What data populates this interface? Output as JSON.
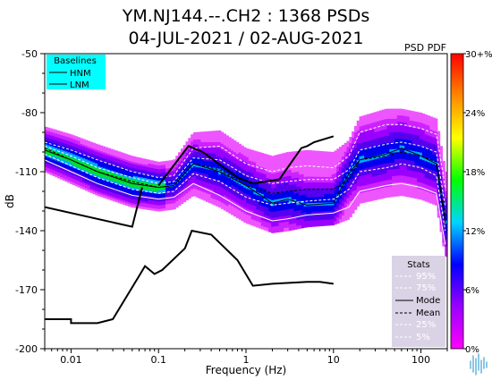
{
  "chart_data": {
    "type": "heatmap",
    "title": "YM.NJ144.--.CH2 : 1368 PSDs",
    "subtitle": "04-JUL-2021 / 02-AUG-2021",
    "xlabel": "Frequency (Hz)",
    "ylabel": "dB",
    "xscale": "log",
    "xlim": [
      0.005,
      200
    ],
    "ylim": [
      -200,
      -50
    ],
    "x_ticks": [
      "0.01",
      "0.1",
      "1",
      "10",
      "100"
    ],
    "x_tick_values": [
      0.01,
      0.1,
      1,
      10,
      100
    ],
    "y_ticks": [
      "-50",
      "-80",
      "-110",
      "-140",
      "-170",
      "-200"
    ],
    "y_tick_values": [
      -50,
      -80,
      -110,
      -140,
      -170,
      -200
    ],
    "colorbar": {
      "label": "PSD PDF",
      "ticks": [
        "30+%",
        "24%",
        "18%",
        "12%",
        "6%",
        "0%"
      ],
      "tick_values": [
        30,
        24,
        18,
        12,
        6,
        0
      ],
      "range": [
        0,
        30
      ],
      "colors": [
        "#ff00ff",
        "#9900ff",
        "#0000ff",
        "#00d5ff",
        "#00ff00",
        "#ffff00",
        "#ff8800",
        "#ff0000"
      ]
    },
    "baselines": {
      "title": "Baselines",
      "entries": [
        "HNM",
        "LNM"
      ],
      "box_color": "#00ffff",
      "HNM": {
        "x": [
          0.1,
          0.22,
          0.32,
          0.8,
          1.2,
          2.4,
          4.3,
          5.0,
          6.0,
          10.0
        ],
        "y": [
          -117,
          -97,
          -100,
          -113,
          -116,
          -114,
          -98,
          -97,
          -95,
          -92
        ]
      },
      "LNM": {
        "x": [
          0.005,
          0.01,
          0.01,
          0.02,
          0.03,
          0.06,
          0.07,
          0.09,
          0.11,
          0.2,
          0.24,
          0.4,
          0.8,
          1.2,
          2.0,
          5.0,
          7.0,
          10.0
        ],
        "y": [
          -185,
          -185,
          -187,
          -187,
          -185,
          -163,
          -158,
          -162,
          -160,
          -149,
          -140,
          -142,
          -155,
          -168,
          -167,
          -166,
          -166,
          -167
        ]
      },
      "LNM_lowfreq": {
        "x": [
          0.005,
          0.05,
          0.065
        ],
        "y": [
          -128,
          -138,
          -118
        ]
      }
    },
    "stats": {
      "title": "Stats",
      "entries": [
        "95%",
        "75%",
        "Mode",
        "Mean",
        "25%",
        "5%"
      ],
      "p95": {
        "x": [
          0.005,
          0.01,
          0.02,
          0.05,
          0.1,
          0.15,
          0.25,
          0.5,
          1,
          2,
          3,
          5,
          10,
          15,
          20,
          40,
          60,
          100,
          150,
          190
        ],
        "y": [
          -95,
          -99,
          -104,
          -110,
          -113,
          -112,
          -98,
          -97,
          -106,
          -110,
          -108,
          -107,
          -108,
          -102,
          -90,
          -86,
          -86,
          -88,
          -91,
          -118
        ]
      },
      "p75": {
        "x": [
          0.005,
          0.01,
          0.02,
          0.05,
          0.1,
          0.15,
          0.25,
          0.5,
          1,
          2,
          3,
          5,
          10,
          15,
          20,
          40,
          60,
          100,
          150,
          190
        ],
        "y": [
          -97,
          -102,
          -108,
          -113,
          -116,
          -115,
          -103,
          -104,
          -112,
          -116,
          -115,
          -114,
          -114,
          -109,
          -99,
          -96,
          -95,
          -97,
          -100,
          -128
        ]
      },
      "mode": {
        "x": [
          0.005,
          0.01,
          0.02,
          0.05,
          0.1,
          0.15,
          0.25,
          0.5,
          1,
          2,
          3,
          5,
          10,
          15,
          20,
          40,
          60,
          100,
          150,
          190
        ],
        "y": [
          -99,
          -104,
          -110,
          -116,
          -118,
          -117,
          -106,
          -110,
          -117,
          -126,
          -124,
          -127,
          -126,
          -111,
          -104,
          -101,
          -98,
          -102,
          -106,
          -136
        ]
      },
      "mean": {
        "x": [
          0.005,
          0.01,
          0.02,
          0.05,
          0.1,
          0.15,
          0.25,
          0.5,
          1,
          2,
          3,
          5,
          10,
          15,
          20,
          40,
          60,
          100,
          150,
          190
        ],
        "y": [
          -98,
          -104,
          -110,
          -115,
          -118,
          -117,
          -106,
          -109,
          -117,
          -121,
          -120,
          -119,
          -119,
          -114,
          -104,
          -102,
          -100,
          -102,
          -105,
          -133
        ]
      },
      "p25": {
        "x": [
          0.005,
          0.01,
          0.02,
          0.05,
          0.1,
          0.15,
          0.25,
          0.5,
          1,
          2,
          3,
          5,
          10,
          15,
          20,
          40,
          60,
          100,
          150,
          190
        ],
        "y": [
          -101,
          -107,
          -113,
          -119,
          -121,
          -120,
          -111,
          -115,
          -123,
          -127,
          -126,
          -125,
          -124,
          -119,
          -110,
          -108,
          -106,
          -108,
          -112,
          -140
        ]
      },
      "p5": {
        "x": [
          0.005,
          0.01,
          0.02,
          0.05,
          0.1,
          0.15,
          0.25,
          0.5,
          1,
          2,
          3,
          5,
          10,
          15,
          20,
          40,
          60,
          100,
          150,
          190
        ],
        "y": [
          -104,
          -110,
          -116,
          -122,
          -124,
          -123,
          -116,
          -122,
          -130,
          -135,
          -134,
          -132,
          -131,
          -128,
          -120,
          -117,
          -116,
          -118,
          -121,
          -147
        ]
      }
    }
  }
}
